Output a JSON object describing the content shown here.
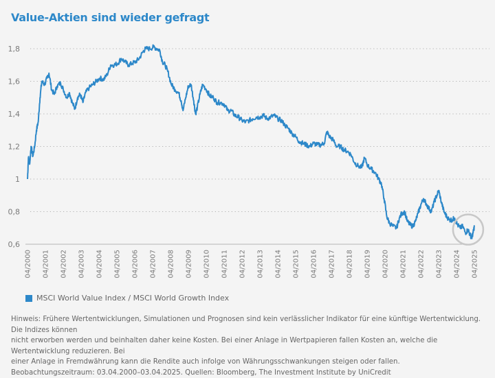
{
  "title": "Value-Aktien sind wieder gefragt",
  "legend": {
    "label": "MSCI World Value Index / MSCI World Growth Index",
    "color": "#2d88c9"
  },
  "note": {
    "lines": [
      "Hinweis: Frühere Wertentwicklungen, Simulationen und Prognosen sind kein verlässlicher Indikator für eine künftige Wertentwicklung. Die Indizes können",
      "nicht erworben werden und beinhalten daher keine Kosten. Bei einer Anlage in Wertpapieren fallen Kosten an, welche die Wertentwicklung reduzieren. Bei",
      "einer Anlage in Fremdwährung kann die Rendite auch infolge von Währungsschwankungen steigen oder fallen.",
      "Beobachtungszeitraum: 03.04.2000–03.04.2025. Quellen: Bloomberg, The Investment Institute by UniCredit"
    ]
  },
  "chart_data": {
    "type": "line",
    "title": "Value-Aktien sind wieder gefragt",
    "xlabel": "",
    "ylabel": "",
    "ylim": [
      0.6,
      1.8
    ],
    "xlim": [
      2000.25,
      2025.25
    ],
    "grid": true,
    "legend_position": "bottom-left",
    "yticks": [
      0.6,
      0.8,
      1.0,
      1.2,
      1.4,
      1.6,
      1.8
    ],
    "ytick_labels": [
      "0,6",
      "0,8",
      "1",
      "1,2",
      "1,4",
      "1,6",
      "1,8"
    ],
    "xtick_labels": [
      "04/2000",
      "04/2001",
      "04/2002",
      "04/2003",
      "04/2004",
      "04/2005",
      "04/2006",
      "04/2007",
      "04/2008",
      "04/2009",
      "04/2010",
      "04/2011",
      "04/2012",
      "04/2013",
      "04/2014",
      "04/2015",
      "04/2016",
      "04/2017",
      "04/2018",
      "04/2019",
      "04/2020",
      "04/2021",
      "04/2022",
      "04/2023",
      "04/2024",
      "04/2025"
    ],
    "annotation": "circle highlighting 2024–2025 rebound",
    "series": [
      {
        "name": "MSCI World Value Index / MSCI World Growth Index",
        "color": "#2d88c9",
        "x": [
          2000.25,
          2000.3,
          2000.38,
          2000.45,
          2000.55,
          2000.65,
          2000.75,
          2000.85,
          2000.95,
          2001.05,
          2001.2,
          2001.35,
          2001.45,
          2001.6,
          2001.75,
          2001.9,
          2002.1,
          2002.25,
          2002.45,
          2002.6,
          2002.75,
          2002.9,
          2003.05,
          2003.2,
          2003.35,
          2003.5,
          2003.7,
          2003.9,
          2004.1,
          2004.3,
          2004.5,
          2004.7,
          2004.9,
          2005.1,
          2005.3,
          2005.5,
          2005.7,
          2005.9,
          2006.1,
          2006.3,
          2006.5,
          2006.7,
          2006.85,
          2007.1,
          2007.3,
          2007.5,
          2007.65,
          2007.8,
          2007.95,
          2008.1,
          2008.3,
          2008.5,
          2008.7,
          2008.85,
          2008.95,
          2009.1,
          2009.25,
          2009.4,
          2009.55,
          2009.65,
          2009.75,
          2009.9,
          2010.05,
          2010.25,
          2010.45,
          2010.65,
          2010.85,
          2011.05,
          2011.25,
          2011.45,
          2011.65,
          2011.85,
          2012.05,
          2012.25,
          2012.45,
          2012.65,
          2012.85,
          2013.05,
          2013.25,
          2013.45,
          2013.65,
          2013.85,
          2014.05,
          2014.25,
          2014.45,
          2014.65,
          2014.85,
          2015.05,
          2015.25,
          2015.45,
          2015.65,
          2015.85,
          2016.05,
          2016.25,
          2016.45,
          2016.65,
          2016.85,
          2017.0,
          2017.15,
          2017.35,
          2017.55,
          2017.75,
          2017.95,
          2018.15,
          2018.35,
          2018.55,
          2018.75,
          2018.95,
          2019.1,
          2019.3,
          2019.5,
          2019.7,
          2019.9,
          2020.05,
          2020.2,
          2020.35,
          2020.5,
          2020.7,
          2020.9,
          2021.05,
          2021.2,
          2021.35,
          2021.5,
          2021.65,
          2021.8,
          2021.95,
          2022.1,
          2022.25,
          2022.4,
          2022.55,
          2022.7,
          2022.85,
          2023.0,
          2023.15,
          2023.25,
          2023.4,
          2023.55,
          2023.7,
          2023.85,
          2024.0,
          2024.15,
          2024.3,
          2024.45,
          2024.6,
          2024.75,
          2024.9,
          2025.0,
          2025.1,
          2025.18,
          2025.25
        ],
        "values": [
          1.0,
          1.13,
          1.1,
          1.2,
          1.14,
          1.2,
          1.3,
          1.35,
          1.5,
          1.6,
          1.58,
          1.62,
          1.65,
          1.55,
          1.52,
          1.57,
          1.59,
          1.55,
          1.5,
          1.53,
          1.47,
          1.43,
          1.5,
          1.52,
          1.47,
          1.53,
          1.56,
          1.58,
          1.6,
          1.62,
          1.61,
          1.64,
          1.7,
          1.7,
          1.71,
          1.74,
          1.72,
          1.7,
          1.71,
          1.72,
          1.74,
          1.78,
          1.8,
          1.8,
          1.81,
          1.8,
          1.79,
          1.72,
          1.7,
          1.66,
          1.58,
          1.55,
          1.53,
          1.48,
          1.42,
          1.5,
          1.57,
          1.58,
          1.48,
          1.4,
          1.44,
          1.52,
          1.58,
          1.55,
          1.51,
          1.5,
          1.47,
          1.47,
          1.46,
          1.42,
          1.42,
          1.39,
          1.38,
          1.36,
          1.35,
          1.36,
          1.37,
          1.38,
          1.38,
          1.39,
          1.37,
          1.38,
          1.39,
          1.37,
          1.36,
          1.33,
          1.31,
          1.28,
          1.26,
          1.23,
          1.22,
          1.21,
          1.2,
          1.22,
          1.21,
          1.21,
          1.22,
          1.29,
          1.26,
          1.24,
          1.2,
          1.2,
          1.18,
          1.17,
          1.15,
          1.1,
          1.08,
          1.07,
          1.13,
          1.08,
          1.06,
          1.04,
          1.0,
          0.97,
          0.88,
          0.77,
          0.73,
          0.71,
          0.7,
          0.76,
          0.79,
          0.8,
          0.74,
          0.72,
          0.71,
          0.74,
          0.79,
          0.84,
          0.88,
          0.85,
          0.82,
          0.8,
          0.86,
          0.9,
          0.93,
          0.86,
          0.8,
          0.77,
          0.75,
          0.75,
          0.76,
          0.72,
          0.7,
          0.71,
          0.67,
          0.69,
          0.66,
          0.64,
          0.67,
          0.71
        ]
      }
    ]
  }
}
